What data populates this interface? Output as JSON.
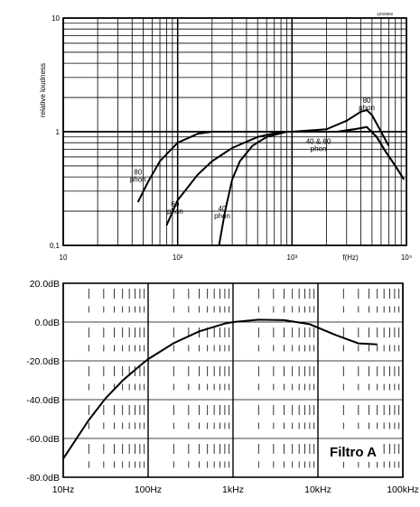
{
  "chart_data": [
    {
      "type": "line",
      "xscale": "log",
      "yscale": "log",
      "xlim": [
        10,
        10000
      ],
      "ylim": [
        0.1,
        10
      ],
      "ylabel": "relative loudness",
      "xlabel": "f(Hz)",
      "id_label": "1ZS5992",
      "x_ticks": [
        "10",
        "10²",
        "10³",
        "10⁴"
      ],
      "y_ticks": [
        "10",
        "1",
        "0,1"
      ],
      "grid": true,
      "series": [
        {
          "name": "80 phon",
          "label_lines": [
            "80",
            "phon"
          ],
          "points": [
            [
              45,
              0.24
            ],
            [
              55,
              0.36
            ],
            [
              70,
              0.55
            ],
            [
              100,
              0.8
            ],
            [
              150,
              0.96
            ],
            [
              200,
              1.0
            ],
            [
              1000,
              1.0
            ],
            [
              2000,
              1.05
            ],
            [
              3000,
              1.25
            ],
            [
              4000,
              1.5
            ],
            [
              4500,
              1.55
            ],
            [
              5000,
              1.4
            ],
            [
              6000,
              1.0
            ],
            [
              7000,
              0.75
            ]
          ]
        },
        {
          "name": "60 phon",
          "label_lines": [
            "60",
            "phon"
          ],
          "points": [
            [
              80,
              0.15
            ],
            [
              100,
              0.25
            ],
            [
              150,
              0.42
            ],
            [
              200,
              0.55
            ],
            [
              300,
              0.72
            ],
            [
              500,
              0.9
            ],
            [
              800,
              1.0
            ],
            [
              1500,
              1.0
            ],
            [
              2500,
              1.0
            ],
            [
              3500,
              1.05
            ],
            [
              4500,
              1.1
            ],
            [
              5500,
              0.9
            ],
            [
              6500,
              0.68
            ],
            [
              8000,
              0.5
            ],
            [
              9500,
              0.38
            ]
          ]
        },
        {
          "name": "40 phon",
          "label_lines": [
            "40",
            "phon"
          ],
          "points": [
            [
              230,
              0.1
            ],
            [
              260,
              0.2
            ],
            [
              300,
              0.38
            ],
            [
              350,
              0.55
            ],
            [
              450,
              0.75
            ],
            [
              600,
              0.9
            ],
            [
              900,
              1.0
            ],
            [
              1500,
              1.0
            ],
            [
              2500,
              1.0
            ],
            [
              3500,
              1.05
            ],
            [
              4500,
              1.1
            ],
            [
              5500,
              0.9
            ],
            [
              6500,
              0.68
            ],
            [
              8000,
              0.5
            ],
            [
              9500,
              0.38
            ]
          ]
        }
      ],
      "annotations": [
        {
          "id": "label-4060",
          "lines": [
            "40 & 60",
            "phon"
          ],
          "x": 1700,
          "y": 0.78
        },
        {
          "id": "label-80r",
          "lines": [
            "80",
            "phon"
          ],
          "x": 4500,
          "y": 1.8
        }
      ]
    },
    {
      "type": "line",
      "xscale": "log",
      "xlim": [
        10,
        200000
      ],
      "ylim": [
        -80,
        20
      ],
      "x_ticks": [
        "10Hz",
        "100Hz",
        "1kHz",
        "10kHz",
        "100kHz"
      ],
      "y_ticks": [
        "20.0dB",
        "0.0dB",
        "-20.0dB",
        "-40.0dB",
        "-60.0dB",
        "-80.0dB"
      ],
      "grid": true,
      "annotation": "Filtro A",
      "series": [
        {
          "name": "",
          "points": [
            [
              10,
              -70.4
            ],
            [
              20,
              -50.5
            ],
            [
              31.5,
              -39.4
            ],
            [
              50,
              -30.2
            ],
            [
              80,
              -22.5
            ],
            [
              100,
              -19.1
            ],
            [
              200,
              -10.9
            ],
            [
              400,
              -4.8
            ],
            [
              800,
              -0.8
            ],
            [
              1000,
              0
            ],
            [
              2000,
              1.2
            ],
            [
              4000,
              1.0
            ],
            [
              8000,
              -1.1
            ],
            [
              16000,
              -6.6
            ],
            [
              30000,
              -11.0
            ],
            [
              50000,
              -11.5
            ]
          ]
        }
      ]
    }
  ]
}
